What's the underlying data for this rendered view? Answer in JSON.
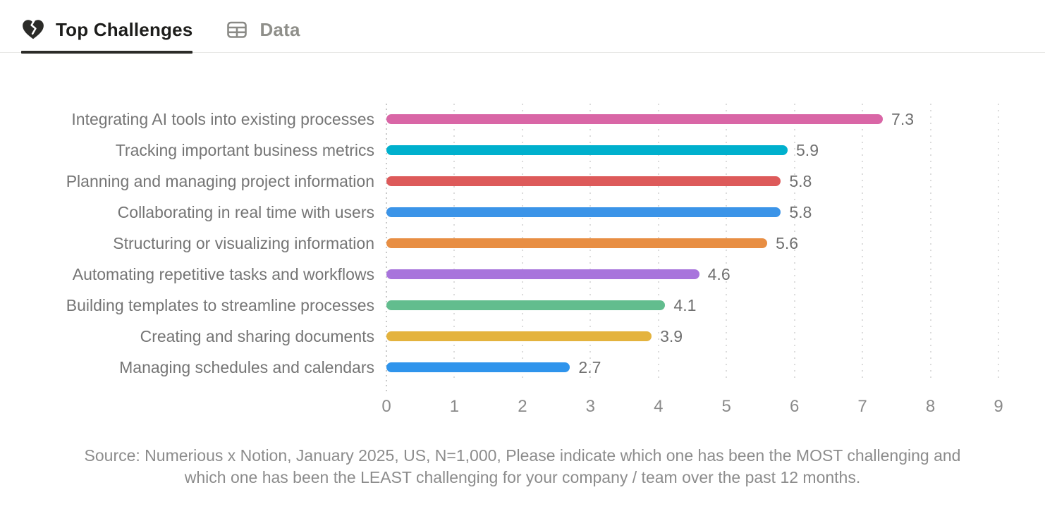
{
  "tabs": [
    {
      "label": "Top Challenges",
      "icon": "broken-heart-icon",
      "active": true
    },
    {
      "label": "Data",
      "icon": "table-icon",
      "active": false
    }
  ],
  "chart_data": {
    "type": "bar",
    "orientation": "horizontal",
    "categories": [
      "Integrating AI tools into existing processes",
      "Tracking important business metrics",
      "Planning and managing project information",
      "Collaborating in real time with users",
      "Structuring or visualizing information",
      "Automating repetitive tasks and workflows",
      "Building templates to streamline processes",
      "Creating and sharing documents",
      "Managing schedules and calendars"
    ],
    "values": [
      7.3,
      5.9,
      5.8,
      5.8,
      5.6,
      4.6,
      4.1,
      3.9,
      2.7
    ],
    "bar_colors": [
      "#d966a6",
      "#00b0cd",
      "#dd5a5a",
      "#3b94e8",
      "#e88e43",
      "#a874dc",
      "#62bd8e",
      "#e4b33e",
      "#2f94ec"
    ],
    "xlim": [
      0,
      9
    ],
    "x_ticks": [
      0,
      1,
      2,
      3,
      4,
      5,
      6,
      7,
      8,
      9
    ],
    "grid": "dotted-vertical",
    "value_labels": "outside-end"
  },
  "source": {
    "line1": "Source: Numerious x Notion, January 2025, US, N=1,000, Please indicate which one has been the MOST challenging and",
    "line2": "which one has been the LEAST challenging for your company /  team over the past 12 months."
  }
}
